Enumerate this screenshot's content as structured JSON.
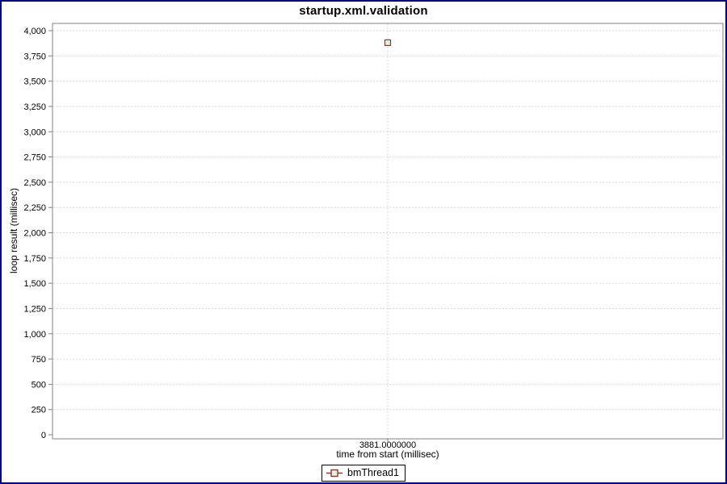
{
  "window": {
    "background": "#ffffff",
    "border_color": "#000080"
  },
  "chart_data": {
    "type": "scatter",
    "title": "startup.xml.validation",
    "xlabel": "time from start (millisec)",
    "ylabel": "loop result (millisec)",
    "xlim": [
      0,
      7762
    ],
    "ylim": [
      0,
      4000
    ],
    "grid": true,
    "legend_position": "bottom-center",
    "x_ticks": [
      {
        "value": 3881,
        "label": "3881.0000000"
      }
    ],
    "y_ticks": [
      {
        "value": 0,
        "label": "0"
      },
      {
        "value": 250,
        "label": "250"
      },
      {
        "value": 500,
        "label": "500"
      },
      {
        "value": 750,
        "label": "750"
      },
      {
        "value": 1000,
        "label": "1,000"
      },
      {
        "value": 1250,
        "label": "1,250"
      },
      {
        "value": 1500,
        "label": "1,500"
      },
      {
        "value": 1750,
        "label": "1,750"
      },
      {
        "value": 2000,
        "label": "2,000"
      },
      {
        "value": 2250,
        "label": "2,250"
      },
      {
        "value": 2500,
        "label": "2,500"
      },
      {
        "value": 2750,
        "label": "2,750"
      },
      {
        "value": 3000,
        "label": "3,000"
      },
      {
        "value": 3250,
        "label": "3,250"
      },
      {
        "value": 3500,
        "label": "3,500"
      },
      {
        "value": 3750,
        "label": "3,750"
      },
      {
        "value": 4000,
        "label": "4,000"
      }
    ],
    "series": [
      {
        "name": "bmThread1",
        "marker": "square",
        "marker_fill": "#e3f1e6",
        "marker_stroke": "#7e4034",
        "line_color": "#7e4034",
        "points": [
          {
            "x": 3881,
            "y": 3881
          }
        ]
      }
    ],
    "colors": {
      "plot_border": "#808080",
      "gridline": "#d6d6d6",
      "tick": "#808080",
      "text": "#000000"
    }
  }
}
